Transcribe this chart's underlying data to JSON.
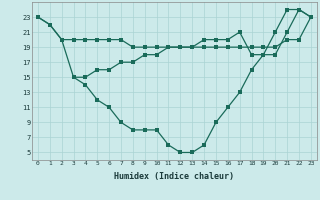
{
  "line1_x": [
    0,
    1,
    2,
    3,
    4,
    5,
    6,
    7,
    8,
    9,
    10,
    11,
    12,
    13,
    14,
    15,
    16,
    17,
    18,
    19,
    20,
    21,
    22,
    23
  ],
  "line1_y": [
    23,
    22,
    20,
    15,
    14,
    12,
    11,
    9,
    8,
    8,
    8,
    6,
    5,
    5,
    6,
    9,
    11,
    13,
    16,
    18,
    21,
    24,
    24,
    23
  ],
  "line2_x": [
    0,
    1,
    2,
    3,
    4,
    5,
    6,
    7,
    8,
    9,
    10,
    11,
    12,
    13,
    14,
    15,
    16,
    17,
    18,
    19,
    20,
    21,
    22,
    23
  ],
  "line2_y": [
    23,
    22,
    20,
    20,
    20,
    20,
    20,
    20,
    19,
    19,
    19,
    19,
    19,
    19,
    19,
    19,
    19,
    19,
    19,
    19,
    19,
    20,
    20,
    23
  ],
  "line3_x": [
    3,
    4,
    5,
    6,
    7,
    8,
    9,
    10,
    11,
    12,
    13,
    14,
    15,
    16,
    17,
    18,
    19,
    20,
    21,
    22,
    23
  ],
  "line3_y": [
    15,
    15,
    16,
    16,
    17,
    17,
    18,
    18,
    19,
    19,
    19,
    20,
    20,
    20,
    21,
    18,
    18,
    18,
    21,
    24,
    23
  ],
  "xlabel": "Humidex (Indice chaleur)",
  "xlim": [
    -0.5,
    23.5
  ],
  "ylim": [
    4,
    25
  ],
  "yticks": [
    5,
    7,
    9,
    11,
    13,
    15,
    17,
    19,
    21,
    23
  ],
  "xticks": [
    0,
    1,
    2,
    3,
    4,
    5,
    6,
    7,
    8,
    9,
    10,
    11,
    12,
    13,
    14,
    15,
    16,
    17,
    18,
    19,
    20,
    21,
    22,
    23
  ],
  "bg_color": "#cceaea",
  "grid_color": "#aad4d4",
  "line_color": "#1a6b5a",
  "font_color": "#1a3a3a",
  "tick_fontsize": 4.5,
  "xlabel_fontsize": 6.0,
  "linewidth": 0.9,
  "markersize": 2.2
}
